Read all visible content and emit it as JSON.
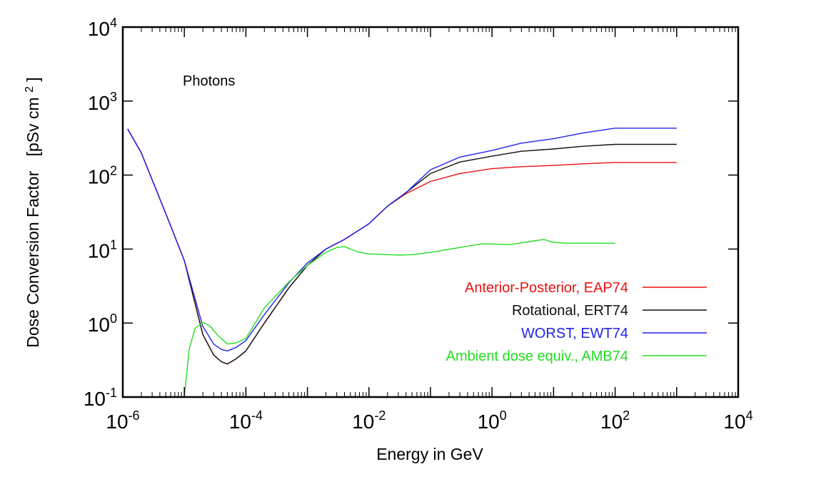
{
  "chart_data": {
    "type": "line",
    "title": "",
    "annotation": "Photons",
    "xlabel": "Energy in GeV",
    "ylabel": "Dose Conversion Factor",
    "ylabel_unit": "[pSv cm",
    "ylabel_unit_sup": "2",
    "ylabel_unit_close": "]",
    "xscale": "log",
    "yscale": "log",
    "xlim": [
      1e-06,
      10000
    ],
    "ylim": [
      0.1,
      10000
    ],
    "grid": false,
    "legend_position": "center-right",
    "x_ticks": [
      {
        "base": "10",
        "exp": "-6",
        "value": 1e-06
      },
      {
        "base": "10",
        "exp": "-4",
        "value": 0.0001
      },
      {
        "base": "10",
        "exp": "-2",
        "value": 0.01
      },
      {
        "base": "10",
        "exp": "0",
        "value": 1
      },
      {
        "base": "10",
        "exp": "2",
        "value": 100
      },
      {
        "base": "10",
        "exp": "4",
        "value": 10000
      }
    ],
    "y_ticks": [
      {
        "base": "10",
        "exp": "-1",
        "value": 0.1
      },
      {
        "base": "10",
        "exp": "0",
        "value": 1
      },
      {
        "base": "10",
        "exp": "1",
        "value": 10
      },
      {
        "base": "10",
        "exp": "2",
        "value": 100
      },
      {
        "base": "10",
        "exp": "3",
        "value": 1000
      },
      {
        "base": "10",
        "exp": "4",
        "value": 10000
      }
    ],
    "series": [
      {
        "name": "Anterior-Posterior, EAP74",
        "color": "#ee1111",
        "points": [
          [
            1.2e-06,
            420
          ],
          [
            2e-06,
            200
          ],
          [
            5e-06,
            30
          ],
          [
            1e-05,
            7
          ],
          [
            2e-05,
            0.7
          ],
          [
            3e-05,
            0.37
          ],
          [
            4e-05,
            0.3
          ],
          [
            5e-05,
            0.28
          ],
          [
            7e-05,
            0.33
          ],
          [
            0.0001,
            0.42
          ],
          [
            0.0002,
            1
          ],
          [
            0.0005,
            3
          ],
          [
            0.001,
            6
          ],
          [
            0.002,
            10
          ],
          [
            0.004,
            13.5
          ],
          [
            0.01,
            22
          ],
          [
            0.02,
            38
          ],
          [
            0.04,
            56
          ],
          [
            0.1,
            82
          ],
          [
            0.3,
            105
          ],
          [
            1,
            122
          ],
          [
            3,
            130
          ],
          [
            10,
            135
          ],
          [
            30,
            142
          ],
          [
            100,
            148
          ],
          [
            1000,
            148
          ]
        ]
      },
      {
        "name": "Rotational, ERT74",
        "color": "#111111",
        "points": [
          [
            1.2e-06,
            420
          ],
          [
            2e-06,
            200
          ],
          [
            5e-06,
            30
          ],
          [
            1e-05,
            7
          ],
          [
            2e-05,
            0.7
          ],
          [
            3e-05,
            0.37
          ],
          [
            4e-05,
            0.3
          ],
          [
            5e-05,
            0.28
          ],
          [
            7e-05,
            0.33
          ],
          [
            0.0001,
            0.42
          ],
          [
            0.0002,
            1
          ],
          [
            0.0005,
            3
          ],
          [
            0.001,
            6
          ],
          [
            0.002,
            10
          ],
          [
            0.004,
            13.5
          ],
          [
            0.01,
            22
          ],
          [
            0.02,
            38
          ],
          [
            0.04,
            58
          ],
          [
            0.1,
            105
          ],
          [
            0.3,
            150
          ],
          [
            1,
            180
          ],
          [
            3,
            210
          ],
          [
            10,
            225
          ],
          [
            30,
            245
          ],
          [
            100,
            260
          ],
          [
            1000,
            260
          ]
        ]
      },
      {
        "name": "WORST, EWT74",
        "color": "#2222ee",
        "points": [
          [
            1.2e-06,
            420
          ],
          [
            2e-06,
            200
          ],
          [
            5e-06,
            30
          ],
          [
            1e-05,
            7
          ],
          [
            2e-05,
            0.9
          ],
          [
            3e-05,
            0.52
          ],
          [
            4e-05,
            0.44
          ],
          [
            5e-05,
            0.42
          ],
          [
            7e-05,
            0.47
          ],
          [
            0.0001,
            0.58
          ],
          [
            0.0002,
            1.3
          ],
          [
            0.0005,
            3.5
          ],
          [
            0.001,
            6.5
          ],
          [
            0.002,
            10
          ],
          [
            0.004,
            13.5
          ],
          [
            0.01,
            22
          ],
          [
            0.02,
            38
          ],
          [
            0.04,
            58
          ],
          [
            0.1,
            118
          ],
          [
            0.3,
            175
          ],
          [
            1,
            215
          ],
          [
            3,
            270
          ],
          [
            10,
            310
          ],
          [
            30,
            370
          ],
          [
            100,
            430
          ],
          [
            1000,
            430
          ]
        ]
      },
      {
        "name": "Ambient dose equiv., AMB74",
        "color": "#22dd22",
        "points": [
          [
            1e-05,
            0.1
          ],
          [
            1.2e-05,
            0.45
          ],
          [
            1.5e-05,
            0.85
          ],
          [
            2e-05,
            1.02
          ],
          [
            2.6e-05,
            0.92
          ],
          [
            3.5e-05,
            0.68
          ],
          [
            5e-05,
            0.52
          ],
          [
            7e-05,
            0.54
          ],
          [
            0.0001,
            0.62
          ],
          [
            0.0002,
            1.6
          ],
          [
            0.0005,
            3.6
          ],
          [
            0.001,
            6
          ],
          [
            0.002,
            9
          ],
          [
            0.003,
            10.5
          ],
          [
            0.004,
            10.8
          ],
          [
            0.005,
            10
          ],
          [
            0.007,
            9
          ],
          [
            0.01,
            8.6
          ],
          [
            0.03,
            8.3
          ],
          [
            0.05,
            8.4
          ],
          [
            0.1,
            9
          ],
          [
            0.3,
            10.5
          ],
          [
            0.7,
            11.8
          ],
          [
            2,
            11.5
          ],
          [
            4,
            12.6
          ],
          [
            7,
            13.5
          ],
          [
            9,
            12.5
          ],
          [
            15,
            12
          ],
          [
            100,
            12
          ]
        ]
      }
    ]
  }
}
